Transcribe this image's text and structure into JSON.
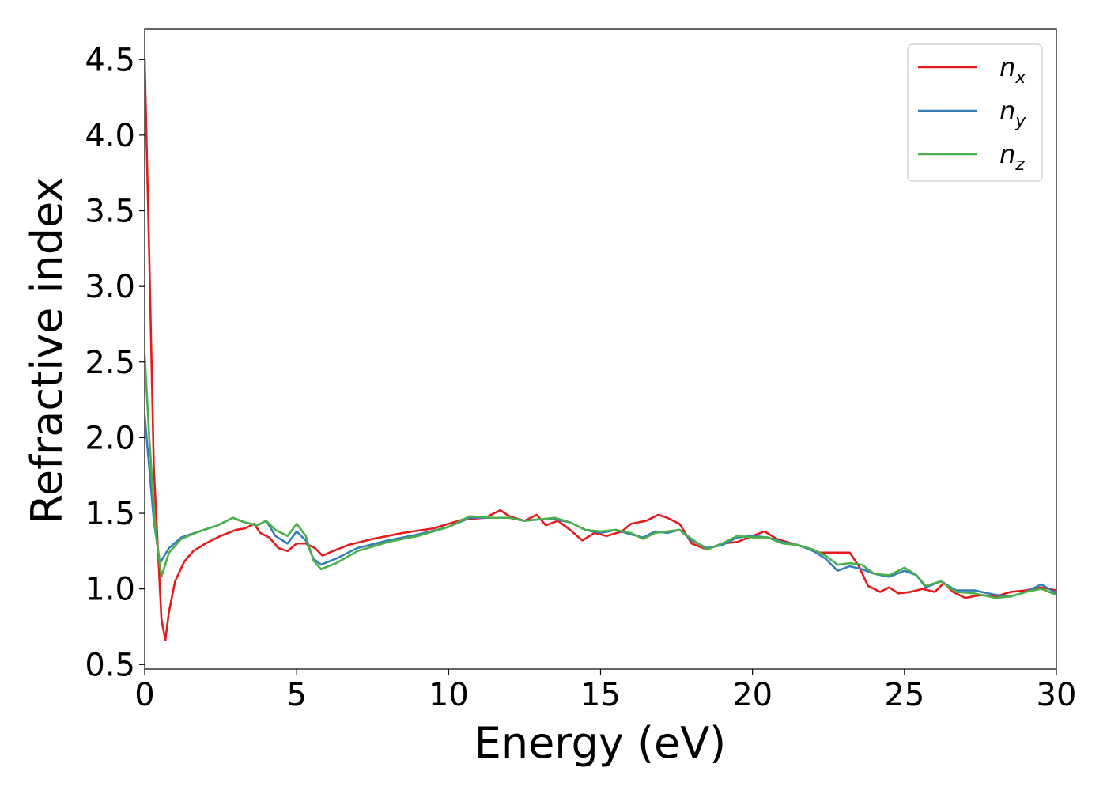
{
  "chart_data": {
    "type": "line",
    "title": "",
    "xlabel": "Energy (eV)",
    "ylabel": "Refractive index",
    "xlim": [
      0,
      30
    ],
    "ylim": [
      0.47,
      4.7
    ],
    "xticks": [
      0,
      5,
      10,
      15,
      20,
      25,
      30
    ],
    "xtick_labels": [
      "0",
      "5",
      "10",
      "15",
      "20",
      "25",
      "30"
    ],
    "yticks": [
      0.5,
      1.0,
      1.5,
      2.0,
      2.5,
      3.0,
      3.5,
      4.0,
      4.5
    ],
    "ytick_labels": [
      "0.5",
      "1.0",
      "1.5",
      "2.0",
      "2.5",
      "3.0",
      "3.5",
      "4.0",
      "4.5"
    ],
    "grid": false,
    "legend_position": "top-right",
    "series": [
      {
        "name": "n_x",
        "label_base": "n",
        "label_sub": "x",
        "color": "#e41a1c",
        "points": [
          [
            0,
            4.5
          ],
          [
            0.15,
            3.2
          ],
          [
            0.3,
            1.8
          ],
          [
            0.45,
            1.2
          ],
          [
            0.55,
            0.8
          ],
          [
            0.68,
            0.66
          ],
          [
            0.8,
            0.85
          ],
          [
            1.0,
            1.05
          ],
          [
            1.3,
            1.18
          ],
          [
            1.6,
            1.25
          ],
          [
            2.0,
            1.3
          ],
          [
            2.5,
            1.35
          ],
          [
            3.0,
            1.39
          ],
          [
            3.3,
            1.4
          ],
          [
            3.6,
            1.43
          ],
          [
            3.8,
            1.37
          ],
          [
            4.1,
            1.34
          ],
          [
            4.4,
            1.27
          ],
          [
            4.7,
            1.25
          ],
          [
            5.0,
            1.3
          ],
          [
            5.3,
            1.3
          ],
          [
            5.6,
            1.27
          ],
          [
            5.85,
            1.22
          ],
          [
            6.2,
            1.25
          ],
          [
            6.7,
            1.29
          ],
          [
            7.5,
            1.33
          ],
          [
            8.5,
            1.37
          ],
          [
            9.5,
            1.4
          ],
          [
            10.5,
            1.46
          ],
          [
            11.2,
            1.47
          ],
          [
            11.7,
            1.52
          ],
          [
            12.0,
            1.48
          ],
          [
            12.5,
            1.45
          ],
          [
            12.9,
            1.49
          ],
          [
            13.2,
            1.42
          ],
          [
            13.6,
            1.45
          ],
          [
            14.0,
            1.39
          ],
          [
            14.4,
            1.32
          ],
          [
            14.8,
            1.37
          ],
          [
            15.2,
            1.35
          ],
          [
            15.7,
            1.38
          ],
          [
            16.0,
            1.43
          ],
          [
            16.5,
            1.45
          ],
          [
            16.9,
            1.49
          ],
          [
            17.2,
            1.47
          ],
          [
            17.6,
            1.43
          ],
          [
            18.0,
            1.3
          ],
          [
            18.5,
            1.26
          ],
          [
            19.0,
            1.3
          ],
          [
            19.5,
            1.31
          ],
          [
            20.0,
            1.35
          ],
          [
            20.4,
            1.38
          ],
          [
            20.8,
            1.33
          ],
          [
            21.3,
            1.3
          ],
          [
            21.8,
            1.27
          ],
          [
            22.2,
            1.24
          ],
          [
            22.7,
            1.24
          ],
          [
            23.2,
            1.24
          ],
          [
            23.5,
            1.15
          ],
          [
            23.8,
            1.02
          ],
          [
            24.2,
            0.98
          ],
          [
            24.5,
            1.01
          ],
          [
            24.8,
            0.97
          ],
          [
            25.2,
            0.98
          ],
          [
            25.6,
            1.0
          ],
          [
            26.0,
            0.98
          ],
          [
            26.3,
            1.04
          ],
          [
            26.6,
            0.98
          ],
          [
            27.0,
            0.94
          ],
          [
            27.5,
            0.96
          ],
          [
            28.0,
            0.95
          ],
          [
            28.5,
            0.98
          ],
          [
            29.0,
            0.99
          ],
          [
            29.5,
            1.01
          ],
          [
            30.0,
            0.99
          ]
        ]
      },
      {
        "name": "n_y",
        "label_base": "n",
        "label_sub": "y",
        "color": "#377eb8",
        "points": [
          [
            0,
            2.15
          ],
          [
            0.15,
            1.8
          ],
          [
            0.3,
            1.45
          ],
          [
            0.5,
            1.17
          ],
          [
            0.8,
            1.27
          ],
          [
            1.2,
            1.34
          ],
          [
            1.8,
            1.38
          ],
          [
            2.4,
            1.42
          ],
          [
            2.9,
            1.47
          ],
          [
            3.3,
            1.44
          ],
          [
            3.7,
            1.42
          ],
          [
            4.0,
            1.45
          ],
          [
            4.3,
            1.35
          ],
          [
            4.7,
            1.3
          ],
          [
            5.0,
            1.38
          ],
          [
            5.3,
            1.32
          ],
          [
            5.55,
            1.2
          ],
          [
            5.8,
            1.16
          ],
          [
            6.3,
            1.2
          ],
          [
            7.0,
            1.27
          ],
          [
            8.0,
            1.32
          ],
          [
            9.0,
            1.36
          ],
          [
            10.0,
            1.41
          ],
          [
            10.7,
            1.47
          ],
          [
            11.5,
            1.47
          ],
          [
            12.0,
            1.47
          ],
          [
            12.5,
            1.45
          ],
          [
            13.0,
            1.46
          ],
          [
            13.5,
            1.46
          ],
          [
            14.0,
            1.44
          ],
          [
            14.5,
            1.39
          ],
          [
            15.0,
            1.37
          ],
          [
            15.5,
            1.39
          ],
          [
            16.0,
            1.36
          ],
          [
            16.4,
            1.34
          ],
          [
            16.8,
            1.38
          ],
          [
            17.2,
            1.37
          ],
          [
            17.6,
            1.39
          ],
          [
            18.0,
            1.32
          ],
          [
            18.5,
            1.27
          ],
          [
            19.0,
            1.29
          ],
          [
            19.5,
            1.34
          ],
          [
            20.0,
            1.35
          ],
          [
            20.5,
            1.34
          ],
          [
            21.0,
            1.31
          ],
          [
            21.5,
            1.29
          ],
          [
            22.0,
            1.25
          ],
          [
            22.4,
            1.2
          ],
          [
            22.8,
            1.12
          ],
          [
            23.2,
            1.15
          ],
          [
            23.6,
            1.13
          ],
          [
            24.0,
            1.1
          ],
          [
            24.5,
            1.08
          ],
          [
            25.0,
            1.12
          ],
          [
            25.4,
            1.09
          ],
          [
            25.7,
            1.01
          ],
          [
            26.2,
            1.05
          ],
          [
            26.7,
            0.99
          ],
          [
            27.3,
            0.99
          ],
          [
            28.0,
            0.96
          ],
          [
            28.5,
            0.95
          ],
          [
            29.0,
            0.98
          ],
          [
            29.5,
            1.03
          ],
          [
            30.0,
            0.97
          ]
        ]
      },
      {
        "name": "n_z",
        "label_base": "n",
        "label_sub": "z",
        "color": "#4daf4a",
        "points": [
          [
            0,
            2.55
          ],
          [
            0.15,
            2.0
          ],
          [
            0.35,
            1.4
          ],
          [
            0.55,
            1.08
          ],
          [
            0.8,
            1.24
          ],
          [
            1.2,
            1.33
          ],
          [
            1.8,
            1.38
          ],
          [
            2.4,
            1.42
          ],
          [
            2.9,
            1.47
          ],
          [
            3.3,
            1.44
          ],
          [
            3.7,
            1.42
          ],
          [
            4.0,
            1.45
          ],
          [
            4.3,
            1.39
          ],
          [
            4.7,
            1.35
          ],
          [
            5.0,
            1.43
          ],
          [
            5.3,
            1.35
          ],
          [
            5.55,
            1.19
          ],
          [
            5.8,
            1.13
          ],
          [
            6.3,
            1.17
          ],
          [
            7.0,
            1.25
          ],
          [
            8.0,
            1.31
          ],
          [
            9.0,
            1.35
          ],
          [
            10.0,
            1.41
          ],
          [
            10.7,
            1.48
          ],
          [
            11.5,
            1.47
          ],
          [
            12.0,
            1.47
          ],
          [
            12.5,
            1.45
          ],
          [
            13.0,
            1.46
          ],
          [
            13.5,
            1.47
          ],
          [
            14.0,
            1.44
          ],
          [
            14.5,
            1.39
          ],
          [
            15.0,
            1.38
          ],
          [
            15.5,
            1.39
          ],
          [
            16.0,
            1.37
          ],
          [
            16.4,
            1.33
          ],
          [
            16.8,
            1.37
          ],
          [
            17.2,
            1.38
          ],
          [
            17.6,
            1.39
          ],
          [
            18.0,
            1.33
          ],
          [
            18.5,
            1.26
          ],
          [
            19.0,
            1.3
          ],
          [
            19.5,
            1.35
          ],
          [
            20.0,
            1.34
          ],
          [
            20.5,
            1.34
          ],
          [
            21.0,
            1.3
          ],
          [
            21.5,
            1.29
          ],
          [
            22.0,
            1.26
          ],
          [
            22.4,
            1.22
          ],
          [
            22.8,
            1.16
          ],
          [
            23.2,
            1.17
          ],
          [
            23.6,
            1.16
          ],
          [
            24.0,
            1.1
          ],
          [
            24.5,
            1.09
          ],
          [
            25.0,
            1.14
          ],
          [
            25.4,
            1.09
          ],
          [
            25.7,
            1.02
          ],
          [
            26.2,
            1.05
          ],
          [
            26.7,
            0.98
          ],
          [
            27.3,
            0.97
          ],
          [
            28.0,
            0.94
          ],
          [
            28.5,
            0.95
          ],
          [
            29.0,
            0.98
          ],
          [
            29.5,
            1.0
          ],
          [
            30.0,
            0.96
          ]
        ]
      }
    ]
  }
}
